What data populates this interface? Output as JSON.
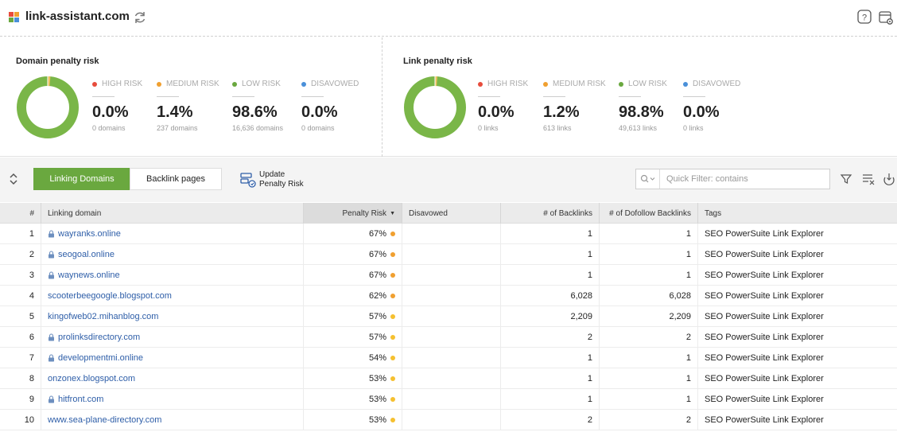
{
  "header": {
    "site": "link-assistant.com",
    "refresh_icon": "refresh-icon",
    "help_icon": "help-icon",
    "settings_icon": "settings-icon"
  },
  "domain_panel": {
    "title": "Domain penalty risk",
    "stats": [
      {
        "legend": "HIGH RISK",
        "value": "0.0%",
        "sub": "0 domains",
        "color": "#e74c3c"
      },
      {
        "legend": "MEDIUM RISK",
        "value": "1.4%",
        "sub": "237 domains",
        "color": "#f0a030"
      },
      {
        "legend": "LOW RISK",
        "value": "98.6%",
        "sub": "16,636 domains",
        "color": "#6aa83f"
      },
      {
        "legend": "DISAVOWED",
        "value": "0.0%",
        "sub": "0 domains",
        "color": "#4a90d9"
      }
    ]
  },
  "link_panel": {
    "title": "Link penalty risk",
    "stats": [
      {
        "legend": "HIGH RISK",
        "value": "0.0%",
        "sub": "0 links",
        "color": "#e74c3c"
      },
      {
        "legend": "MEDIUM RISK",
        "value": "1.2%",
        "sub": "613 links",
        "color": "#f0a030"
      },
      {
        "legend": "LOW RISK",
        "value": "98.8%",
        "sub": "49,613 links",
        "color": "#6aa83f"
      },
      {
        "legend": "DISAVOWED",
        "value": "0.0%",
        "sub": "0 links",
        "color": "#4a90d9"
      }
    ]
  },
  "toolbar": {
    "tabs": [
      "Linking Domains",
      "Backlink pages"
    ],
    "update_label_1": "Update",
    "update_label_2": "Penalty Risk",
    "filter_placeholder": "Quick Filter: contains"
  },
  "table": {
    "headers": {
      "num": "#",
      "domain": "Linking domain",
      "risk": "Penalty Risk",
      "disavowed": "Disavowed",
      "backlinks": "# of Backlinks",
      "dofollow": "# of Dofollow Backlinks",
      "tags": "Tags"
    },
    "rows": [
      {
        "num": "1",
        "domain": "wayranks.online",
        "secure": true,
        "risk": "67%",
        "risk_color": "#f0a030",
        "backlinks": "1",
        "dofollow": "1",
        "tags": "SEO PowerSuite Link Explorer"
      },
      {
        "num": "2",
        "domain": "seogoal.online",
        "secure": true,
        "risk": "67%",
        "risk_color": "#f0a030",
        "backlinks": "1",
        "dofollow": "1",
        "tags": "SEO PowerSuite Link Explorer"
      },
      {
        "num": "3",
        "domain": "waynews.online",
        "secure": true,
        "risk": "67%",
        "risk_color": "#f0a030",
        "backlinks": "1",
        "dofollow": "1",
        "tags": "SEO PowerSuite Link Explorer"
      },
      {
        "num": "4",
        "domain": "scooterbeegoogle.blogspot.com",
        "secure": false,
        "risk": "62%",
        "risk_color": "#f0a030",
        "backlinks": "6,028",
        "dofollow": "6,028",
        "tags": "SEO PowerSuite Link Explorer"
      },
      {
        "num": "5",
        "domain": "kingofweb02.mihanblog.com",
        "secure": false,
        "risk": "57%",
        "risk_color": "#f5c030",
        "backlinks": "2,209",
        "dofollow": "2,209",
        "tags": "SEO PowerSuite Link Explorer"
      },
      {
        "num": "6",
        "domain": "prolinksdirectory.com",
        "secure": true,
        "risk": "57%",
        "risk_color": "#f5c030",
        "backlinks": "2",
        "dofollow": "2",
        "tags": "SEO PowerSuite Link Explorer"
      },
      {
        "num": "7",
        "domain": "developmentmi.online",
        "secure": true,
        "risk": "54%",
        "risk_color": "#f5c030",
        "backlinks": "1",
        "dofollow": "1",
        "tags": "SEO PowerSuite Link Explorer"
      },
      {
        "num": "8",
        "domain": "onzonex.blogspot.com",
        "secure": false,
        "risk": "53%",
        "risk_color": "#f5c030",
        "backlinks": "1",
        "dofollow": "1",
        "tags": "SEO PowerSuite Link Explorer"
      },
      {
        "num": "9",
        "domain": "hitfront.com",
        "secure": true,
        "risk": "53%",
        "risk_color": "#f5c030",
        "backlinks": "1",
        "dofollow": "1",
        "tags": "SEO PowerSuite Link Explorer"
      },
      {
        "num": "10",
        "domain": "www.sea-plane-directory.com",
        "secure": false,
        "risk": "53%",
        "risk_color": "#f5c030",
        "backlinks": "2",
        "dofollow": "2",
        "tags": "SEO PowerSuite Link Explorer"
      }
    ]
  }
}
